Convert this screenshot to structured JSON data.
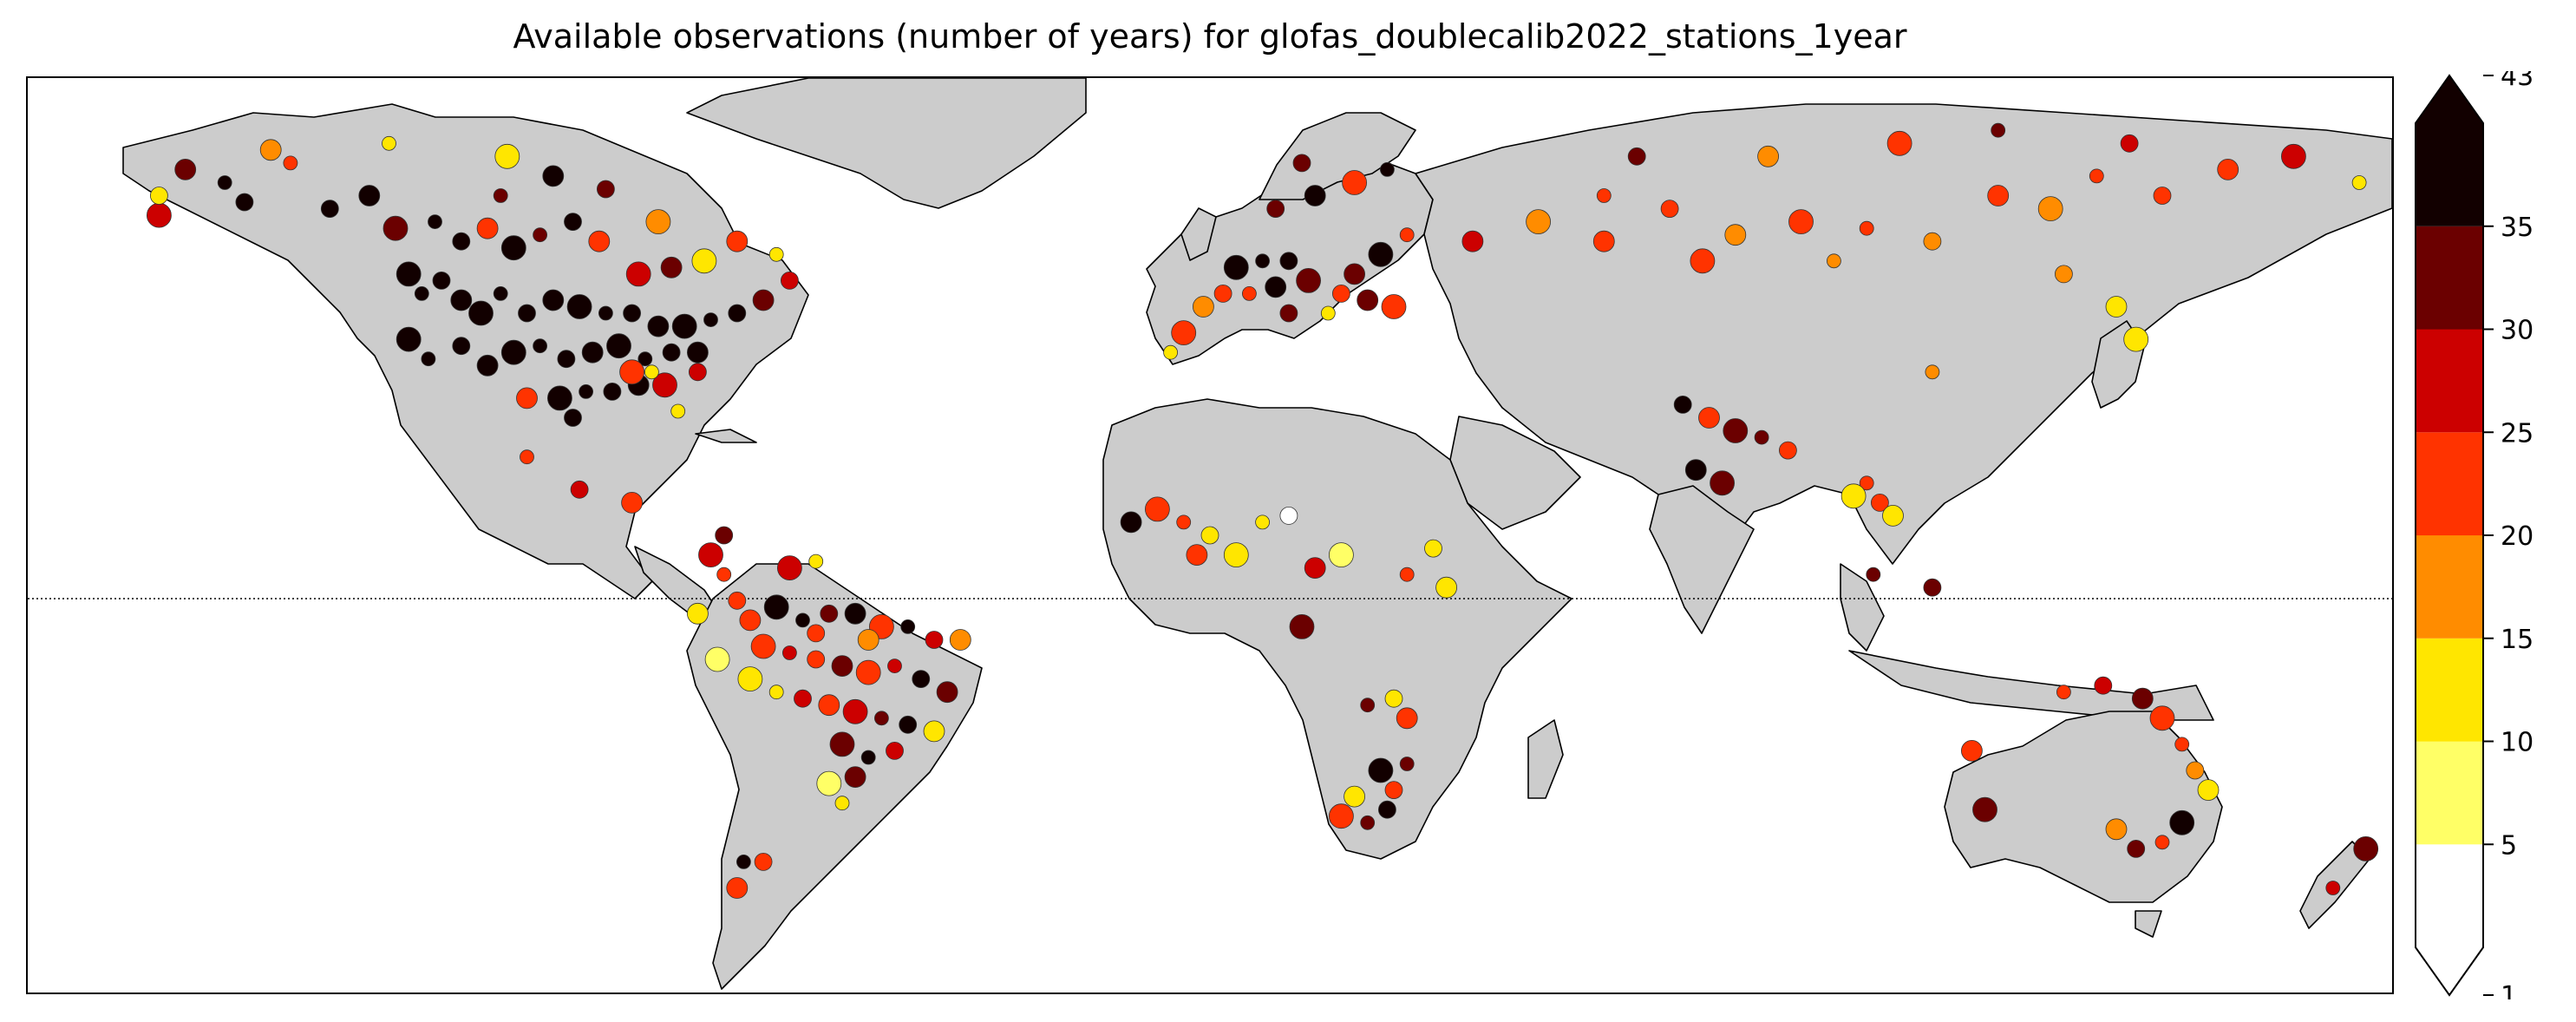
{
  "title": "Available observations (number of years) for glofas_doublecalib2022_stations_1year",
  "colorbar": {
    "ticks": [
      "1",
      "5",
      "10",
      "15",
      "20",
      "25",
      "30",
      "35",
      "43"
    ],
    "bins": [
      {
        "from": 1,
        "to": 5,
        "color": "#ffffff"
      },
      {
        "from": 5,
        "to": 10,
        "color": "#ffff66"
      },
      {
        "from": 10,
        "to": 15,
        "color": "#ffe600"
      },
      {
        "from": 15,
        "to": 20,
        "color": "#ff8c00"
      },
      {
        "from": 20,
        "to": 25,
        "color": "#ff3300"
      },
      {
        "from": 25,
        "to": 30,
        "color": "#cc0000"
      },
      {
        "from": 30,
        "to": 35,
        "color": "#6b0000"
      },
      {
        "from": 35,
        "to": 43,
        "color": "#120000"
      }
    ],
    "extend": "both"
  },
  "map": {
    "projection": "PlateCarree",
    "lon_range": [
      -180,
      180
    ],
    "lat_range": [
      -60,
      80
    ],
    "land_color": "#cccccc",
    "ocean_color": "#ffffff",
    "equator_line": "dotted"
  },
  "stations": [
    {
      "lon": -150,
      "lat": 64,
      "v": 36
    },
    {
      "lon": -147,
      "lat": 61,
      "v": 36
    },
    {
      "lon": -156,
      "lat": 66,
      "v": 30
    },
    {
      "lon": -160,
      "lat": 59,
      "v": 28
    },
    {
      "lon": -140,
      "lat": 67,
      "v": 22
    },
    {
      "lon": -134,
      "lat": 60,
      "v": 36
    },
    {
      "lon": -128,
      "lat": 62,
      "v": 38
    },
    {
      "lon": -124,
      "lat": 57,
      "v": 32
    },
    {
      "lon": -118,
      "lat": 58,
      "v": 38
    },
    {
      "lon": -114,
      "lat": 55,
      "v": 36
    },
    {
      "lon": -110,
      "lat": 57,
      "v": 22
    },
    {
      "lon": -106,
      "lat": 54,
      "v": 38
    },
    {
      "lon": -102,
      "lat": 56,
      "v": 30
    },
    {
      "lon": -97,
      "lat": 58,
      "v": 36
    },
    {
      "lon": -93,
      "lat": 55,
      "v": 24
    },
    {
      "lon": -122,
      "lat": 50,
      "v": 38
    },
    {
      "lon": -120,
      "lat": 47,
      "v": 40
    },
    {
      "lon": -117,
      "lat": 49,
      "v": 36
    },
    {
      "lon": -114,
      "lat": 46,
      "v": 38
    },
    {
      "lon": -111,
      "lat": 44,
      "v": 40
    },
    {
      "lon": -108,
      "lat": 47,
      "v": 36
    },
    {
      "lon": -104,
      "lat": 44,
      "v": 38
    },
    {
      "lon": -100,
      "lat": 46,
      "v": 40
    },
    {
      "lon": -96,
      "lat": 45,
      "v": 38
    },
    {
      "lon": -92,
      "lat": 44,
      "v": 36
    },
    {
      "lon": -88,
      "lat": 44,
      "v": 40
    },
    {
      "lon": -84,
      "lat": 42,
      "v": 38
    },
    {
      "lon": -80,
      "lat": 42,
      "v": 40
    },
    {
      "lon": -76,
      "lat": 43,
      "v": 36
    },
    {
      "lon": -72,
      "lat": 44,
      "v": 38
    },
    {
      "lon": -68,
      "lat": 46,
      "v": 30
    },
    {
      "lon": -122,
      "lat": 40,
      "v": 40
    },
    {
      "lon": -119,
      "lat": 37,
      "v": 38
    },
    {
      "lon": -114,
      "lat": 39,
      "v": 36
    },
    {
      "lon": -110,
      "lat": 36,
      "v": 40
    },
    {
      "lon": -106,
      "lat": 38,
      "v": 38
    },
    {
      "lon": -102,
      "lat": 39,
      "v": 36
    },
    {
      "lon": -98,
      "lat": 37,
      "v": 40
    },
    {
      "lon": -94,
      "lat": 38,
      "v": 38
    },
    {
      "lon": -90,
      "lat": 39,
      "v": 40
    },
    {
      "lon": -86,
      "lat": 37,
      "v": 38
    },
    {
      "lon": -82,
      "lat": 38,
      "v": 36
    },
    {
      "lon": -78,
      "lat": 38,
      "v": 40
    },
    {
      "lon": -99,
      "lat": 31,
      "v": 38
    },
    {
      "lon": -95,
      "lat": 32,
      "v": 40
    },
    {
      "lon": -91,
      "lat": 32,
      "v": 36
    },
    {
      "lon": -87,
      "lat": 33,
      "v": 38
    },
    {
      "lon": -83,
      "lat": 33,
      "v": 28
    },
    {
      "lon": -81,
      "lat": 29,
      "v": 12
    },
    {
      "lon": -97,
      "lat": 28,
      "v": 36
    },
    {
      "lon": -104,
      "lat": 31,
      "v": 24
    },
    {
      "lon": -88,
      "lat": 35,
      "v": 22
    },
    {
      "lon": -85,
      "lat": 35,
      "v": 14
    },
    {
      "lon": -78,
      "lat": 35,
      "v": 26
    },
    {
      "lon": -72,
      "lat": 55,
      "v": 24
    },
    {
      "lon": -77,
      "lat": 52,
      "v": 14
    },
    {
      "lon": -66,
      "lat": 53,
      "v": 12
    },
    {
      "lon": -64,
      "lat": 49,
      "v": 26
    },
    {
      "lon": -82,
      "lat": 51,
      "v": 30
    },
    {
      "lon": -87,
      "lat": 50,
      "v": 26
    },
    {
      "lon": -108,
      "lat": 62,
      "v": 30
    },
    {
      "lon": -92,
      "lat": 63,
      "v": 32
    },
    {
      "lon": -100,
      "lat": 65,
      "v": 36
    },
    {
      "lon": -84,
      "lat": 58,
      "v": 18
    },
    {
      "lon": -104,
      "lat": 22,
      "v": 24
    },
    {
      "lon": -96,
      "lat": 17,
      "v": 26
    },
    {
      "lon": -88,
      "lat": 15,
      "v": 22
    },
    {
      "lon": -107,
      "lat": 68,
      "v": 14
    },
    {
      "lon": -125,
      "lat": 70,
      "v": 12
    },
    {
      "lon": -160,
      "lat": 62,
      "v": 14
    },
    {
      "lon": -143,
      "lat": 69,
      "v": 18
    },
    {
      "lon": -76,
      "lat": 7,
      "v": 28
    },
    {
      "lon": -74,
      "lat": 4,
      "v": 24
    },
    {
      "lon": -72,
      "lat": 0,
      "v": 22
    },
    {
      "lon": -70,
      "lat": -3,
      "v": 24
    },
    {
      "lon": -66,
      "lat": -1,
      "v": 36
    },
    {
      "lon": -62,
      "lat": -3,
      "v": 38
    },
    {
      "lon": -58,
      "lat": -2,
      "v": 30
    },
    {
      "lon": -54,
      "lat": -2,
      "v": 36
    },
    {
      "lon": -50,
      "lat": -4,
      "v": 24
    },
    {
      "lon": -46,
      "lat": -4,
      "v": 38
    },
    {
      "lon": -42,
      "lat": -6,
      "v": 28
    },
    {
      "lon": -38,
      "lat": -6,
      "v": 16
    },
    {
      "lon": -68,
      "lat": -7,
      "v": 20
    },
    {
      "lon": -64,
      "lat": -8,
      "v": 26
    },
    {
      "lon": -60,
      "lat": -9,
      "v": 22
    },
    {
      "lon": -56,
      "lat": -10,
      "v": 30
    },
    {
      "lon": -52,
      "lat": -11,
      "v": 24
    },
    {
      "lon": -48,
      "lat": -10,
      "v": 28
    },
    {
      "lon": -44,
      "lat": -12,
      "v": 38
    },
    {
      "lon": -40,
      "lat": -14,
      "v": 32
    },
    {
      "lon": -70,
      "lat": -12,
      "v": 14
    },
    {
      "lon": -66,
      "lat": -14,
      "v": 12
    },
    {
      "lon": -62,
      "lat": -15,
      "v": 26
    },
    {
      "lon": -58,
      "lat": -16,
      "v": 20
    },
    {
      "lon": -54,
      "lat": -17,
      "v": 28
    },
    {
      "lon": -50,
      "lat": -18,
      "v": 30
    },
    {
      "lon": -46,
      "lat": -19,
      "v": 38
    },
    {
      "lon": -42,
      "lat": -20,
      "v": 12
    },
    {
      "lon": -56,
      "lat": -22,
      "v": 30
    },
    {
      "lon": -52,
      "lat": -24,
      "v": 38
    },
    {
      "lon": -48,
      "lat": -23,
      "v": 26
    },
    {
      "lon": -54,
      "lat": -27,
      "v": 32
    },
    {
      "lon": -58,
      "lat": -28,
      "v": 8
    },
    {
      "lon": -56,
      "lat": -31,
      "v": 12
    },
    {
      "lon": -60,
      "lat": -5,
      "v": 24
    },
    {
      "lon": -52,
      "lat": -6,
      "v": 16
    },
    {
      "lon": -64,
      "lat": 5,
      "v": 26
    },
    {
      "lon": -60,
      "lat": 6,
      "v": 12
    },
    {
      "lon": -74,
      "lat": 10,
      "v": 30
    },
    {
      "lon": -78,
      "lat": -2,
      "v": 12
    },
    {
      "lon": -75,
      "lat": -9,
      "v": 8
    },
    {
      "lon": -71,
      "lat": -40,
      "v": 38
    },
    {
      "lon": -68,
      "lat": -40,
      "v": 24
    },
    {
      "lon": -72,
      "lat": -44,
      "v": 22
    },
    {
      "lon": 4,
      "lat": 51,
      "v": 38
    },
    {
      "lon": 8,
      "lat": 52,
      "v": 40
    },
    {
      "lon": 12,
      "lat": 52,
      "v": 38
    },
    {
      "lon": 10,
      "lat": 48,
      "v": 36
    },
    {
      "lon": 15,
      "lat": 49,
      "v": 30
    },
    {
      "lon": 6,
      "lat": 47,
      "v": 24
    },
    {
      "lon": 2,
      "lat": 47,
      "v": 22
    },
    {
      "lon": -1,
      "lat": 45,
      "v": 18
    },
    {
      "lon": -4,
      "lat": 41,
      "v": 24
    },
    {
      "lon": -6,
      "lat": 38,
      "v": 12
    },
    {
      "lon": 20,
      "lat": 47,
      "v": 24
    },
    {
      "lon": 24,
      "lat": 46,
      "v": 30
    },
    {
      "lon": 28,
      "lat": 45,
      "v": 24
    },
    {
      "lon": 18,
      "lat": 44,
      "v": 12
    },
    {
      "lon": 12,
      "lat": 44,
      "v": 30
    },
    {
      "lon": 22,
      "lat": 50,
      "v": 30
    },
    {
      "lon": 26,
      "lat": 53,
      "v": 36
    },
    {
      "lon": 30,
      "lat": 56,
      "v": 22
    },
    {
      "lon": 10,
      "lat": 60,
      "v": 32
    },
    {
      "lon": 16,
      "lat": 62,
      "v": 36
    },
    {
      "lon": 22,
      "lat": 64,
      "v": 24
    },
    {
      "lon": 27,
      "lat": 66,
      "v": 36
    },
    {
      "lon": 14,
      "lat": 67,
      "v": 30
    },
    {
      "lon": 40,
      "lat": 55,
      "v": 26
    },
    {
      "lon": 50,
      "lat": 58,
      "v": 18
    },
    {
      "lon": 60,
      "lat": 62,
      "v": 20
    },
    {
      "lon": 70,
      "lat": 60,
      "v": 22
    },
    {
      "lon": 80,
      "lat": 56,
      "v": 18
    },
    {
      "lon": 90,
      "lat": 58,
      "v": 20
    },
    {
      "lon": 100,
      "lat": 57,
      "v": 22
    },
    {
      "lon": 110,
      "lat": 55,
      "v": 18
    },
    {
      "lon": 120,
      "lat": 62,
      "v": 20
    },
    {
      "lon": 128,
      "lat": 60,
      "v": 18
    },
    {
      "lon": 135,
      "lat": 65,
      "v": 24
    },
    {
      "lon": 145,
      "lat": 62,
      "v": 20
    },
    {
      "lon": 155,
      "lat": 66,
      "v": 22
    },
    {
      "lon": 165,
      "lat": 68,
      "v": 26
    },
    {
      "lon": 175,
      "lat": 64,
      "v": 12
    },
    {
      "lon": 65,
      "lat": 68,
      "v": 32
    },
    {
      "lon": 85,
      "lat": 68,
      "v": 18
    },
    {
      "lon": 105,
      "lat": 70,
      "v": 20
    },
    {
      "lon": 120,
      "lat": 72,
      "v": 34
    },
    {
      "lon": 140,
      "lat": 70,
      "v": 26
    },
    {
      "lon": 60,
      "lat": 55,
      "v": 20
    },
    {
      "lon": 75,
      "lat": 52,
      "v": 22
    },
    {
      "lon": 95,
      "lat": 52,
      "v": 18
    },
    {
      "lon": 130,
      "lat": 50,
      "v": 16
    },
    {
      "lon": 138,
      "lat": 45,
      "v": 12
    },
    {
      "lon": 141,
      "lat": 40,
      "v": 10
    },
    {
      "lon": 110,
      "lat": 35,
      "v": 16
    },
    {
      "lon": 72,
      "lat": 30,
      "v": 38
    },
    {
      "lon": 76,
      "lat": 28,
      "v": 24
    },
    {
      "lon": 80,
      "lat": 26,
      "v": 30
    },
    {
      "lon": 84,
      "lat": 25,
      "v": 32
    },
    {
      "lon": 88,
      "lat": 23,
      "v": 24
    },
    {
      "lon": 74,
      "lat": 20,
      "v": 38
    },
    {
      "lon": 78,
      "lat": 18,
      "v": 30
    },
    {
      "lon": 100,
      "lat": 18,
      "v": 22
    },
    {
      "lon": 102,
      "lat": 15,
      "v": 20
    },
    {
      "lon": 104,
      "lat": 13,
      "v": 10
    },
    {
      "lon": 98,
      "lat": 16,
      "v": 14
    },
    {
      "lon": 101,
      "lat": 4,
      "v": 30
    },
    {
      "lon": 110,
      "lat": 2,
      "v": 30
    },
    {
      "lon": -12,
      "lat": 12,
      "v": 38
    },
    {
      "lon": -8,
      "lat": 14,
      "v": 24
    },
    {
      "lon": -4,
      "lat": 12,
      "v": 20
    },
    {
      "lon": 0,
      "lat": 10,
      "v": 12
    },
    {
      "lon": -2,
      "lat": 7,
      "v": 22
    },
    {
      "lon": 4,
      "lat": 7,
      "v": 14
    },
    {
      "lon": 8,
      "lat": 12,
      "v": 10
    },
    {
      "lon": 12,
      "lat": 13,
      "v": 4
    },
    {
      "lon": 16,
      "lat": 5,
      "v": 26
    },
    {
      "lon": 20,
      "lat": 7,
      "v": 8
    },
    {
      "lon": 30,
      "lat": 4,
      "v": 22
    },
    {
      "lon": 34,
      "lat": 8,
      "v": 12
    },
    {
      "lon": 36,
      "lat": 2,
      "v": 12
    },
    {
      "lon": 14,
      "lat": -4,
      "v": 32
    },
    {
      "lon": 24,
      "lat": -16,
      "v": 30
    },
    {
      "lon": 28,
      "lat": -15,
      "v": 12
    },
    {
      "lon": 30,
      "lat": -18,
      "v": 20
    },
    {
      "lon": 26,
      "lat": -26,
      "v": 36
    },
    {
      "lon": 30,
      "lat": -25,
      "v": 30
    },
    {
      "lon": 28,
      "lat": -29,
      "v": 24
    },
    {
      "lon": 22,
      "lat": -30,
      "v": 14
    },
    {
      "lon": 20,
      "lat": -33,
      "v": 24
    },
    {
      "lon": 24,
      "lat": -34,
      "v": 30
    },
    {
      "lon": 27,
      "lat": -32,
      "v": 38
    },
    {
      "lon": 116,
      "lat": -23,
      "v": 24
    },
    {
      "lon": 118,
      "lat": -32,
      "v": 30
    },
    {
      "lon": 130,
      "lat": -14,
      "v": 20
    },
    {
      "lon": 136,
      "lat": -13,
      "v": 26
    },
    {
      "lon": 142,
      "lat": -15,
      "v": 30
    },
    {
      "lon": 145,
      "lat": -18,
      "v": 24
    },
    {
      "lon": 148,
      "lat": -22,
      "v": 22
    },
    {
      "lon": 150,
      "lat": -26,
      "v": 18
    },
    {
      "lon": 152,
      "lat": -29,
      "v": 12
    },
    {
      "lon": 148,
      "lat": -34,
      "v": 38
    },
    {
      "lon": 145,
      "lat": -37,
      "v": 24
    },
    {
      "lon": 141,
      "lat": -38,
      "v": 30
    },
    {
      "lon": 138,
      "lat": -35,
      "v": 18
    },
    {
      "lon": 176,
      "lat": -38,
      "v": 34
    },
    {
      "lon": 171,
      "lat": -44,
      "v": 26
    }
  ]
}
